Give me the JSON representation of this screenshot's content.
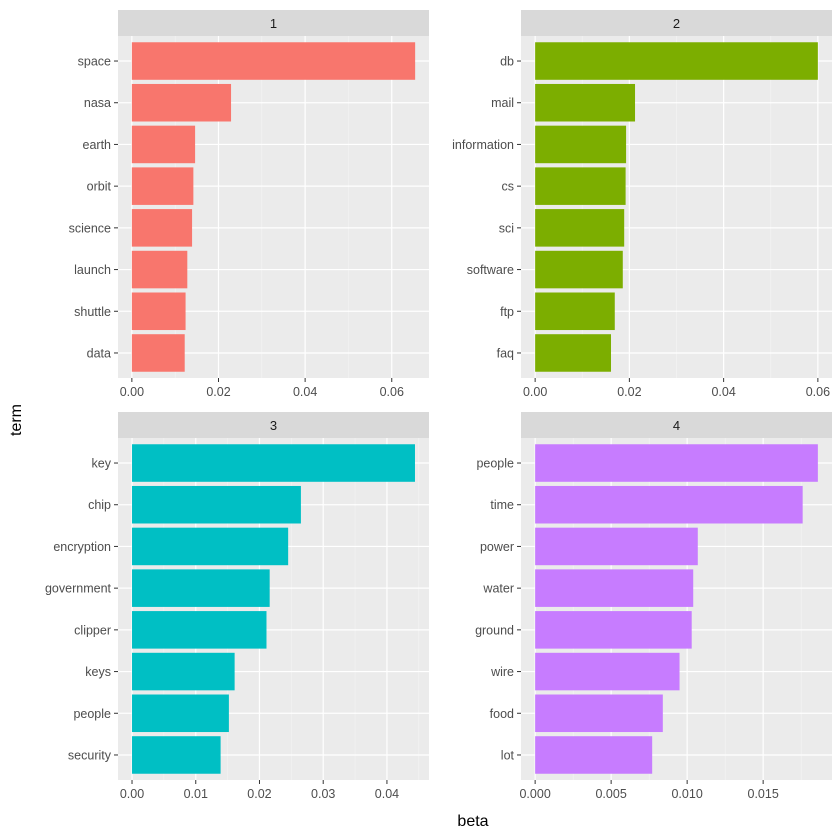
{
  "chart_data": {
    "type": "bar",
    "orientation": "horizontal",
    "facet_layout": "2x2",
    "xlabel": "beta",
    "ylabel": "term",
    "grid": true,
    "legend": "none",
    "panels": [
      {
        "strip": "1",
        "color": "#F8766D",
        "categories": [
          "space",
          "nasa",
          "earth",
          "orbit",
          "science",
          "launch",
          "shuttle",
          "data"
        ],
        "values": [
          0.0654,
          0.0229,
          0.0146,
          0.0142,
          0.0139,
          0.0128,
          0.0124,
          0.0122
        ],
        "xlim": [
          -0.0032,
          0.0686
        ],
        "xticks": [
          0,
          0.02,
          0.04,
          0.06
        ],
        "xtick_labels": [
          "0.00",
          "0.02",
          "0.04",
          "0.06"
        ]
      },
      {
        "strip": "2",
        "color": "#7CAE00",
        "categories": [
          "db",
          "mail",
          "information",
          "cs",
          "sci",
          "software",
          "ftp",
          "faq"
        ],
        "values": [
          0.06,
          0.0212,
          0.0193,
          0.0192,
          0.0189,
          0.0186,
          0.0169,
          0.0161
        ],
        "xlim": [
          -0.003,
          0.063
        ],
        "xticks": [
          0,
          0.02,
          0.04,
          0.06
        ],
        "xtick_labels": [
          "0.00",
          "0.02",
          "0.04",
          "0.06"
        ]
      },
      {
        "strip": "3",
        "color": "#00BFC4",
        "categories": [
          "key",
          "chip",
          "encryption",
          "government",
          "clipper",
          "keys",
          "people",
          "security"
        ],
        "values": [
          0.0444,
          0.0265,
          0.0245,
          0.0216,
          0.0211,
          0.0161,
          0.0152,
          0.0139
        ],
        "xlim": [
          -0.0022,
          0.0466
        ],
        "xticks": [
          0,
          0.01,
          0.02,
          0.03,
          0.04
        ],
        "xtick_labels": [
          "0.00",
          "0.01",
          "0.02",
          "0.03",
          "0.04"
        ]
      },
      {
        "strip": "4",
        "color": "#C77CFF",
        "categories": [
          "people",
          "time",
          "power",
          "water",
          "ground",
          "wire",
          "food",
          "lot"
        ],
        "values": [
          0.0186,
          0.0176,
          0.0107,
          0.0104,
          0.0103,
          0.0095,
          0.0084,
          0.0077
        ],
        "xlim": [
          -0.00093,
          0.01953
        ],
        "xticks": [
          0,
          0.005,
          0.01,
          0.015
        ],
        "xtick_labels": [
          "0.000",
          "0.005",
          "0.010",
          "0.015"
        ]
      }
    ]
  }
}
